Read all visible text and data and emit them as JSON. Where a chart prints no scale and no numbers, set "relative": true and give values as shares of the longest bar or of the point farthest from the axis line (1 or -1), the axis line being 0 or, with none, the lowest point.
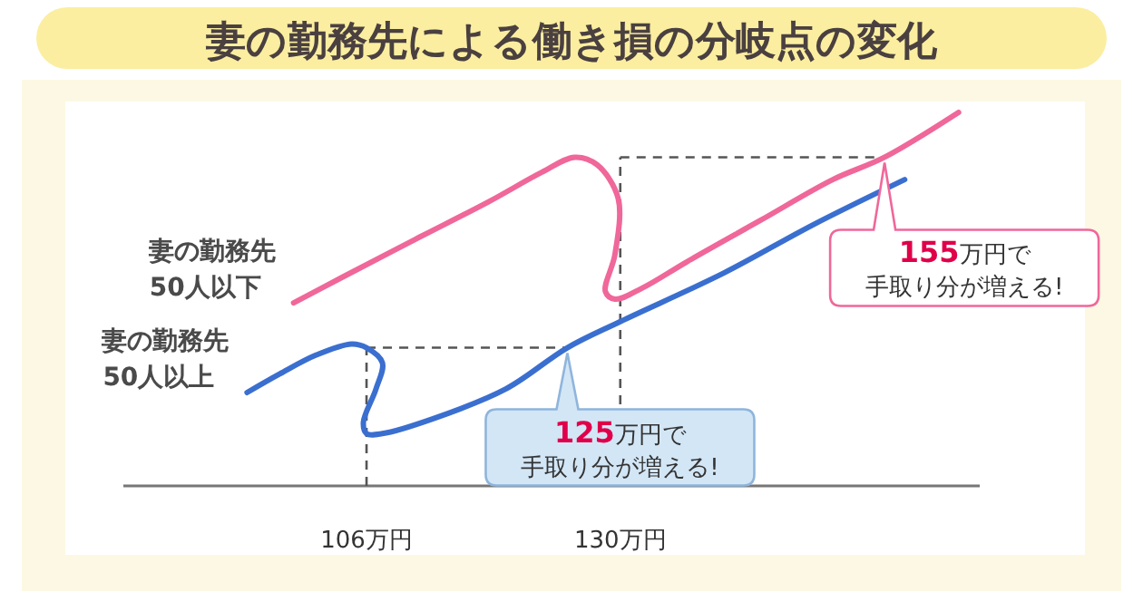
{
  "chart_data": {
    "type": "line",
    "title": "妻の勤務先による働き損の分岐点の変化",
    "relative": true,
    "xlim": [
      83,
      164
    ],
    "xticks": [
      {
        "value": 106,
        "label": "106万円"
      },
      {
        "value": 130,
        "label": "130万円"
      }
    ],
    "tick_labels": "x",
    "grid": false,
    "legend": false,
    "marker": "none",
    "line_style": "solid",
    "series": [
      {
        "name": "妻の勤務先\n50人以下",
        "color": "#f0679a",
        "x": [
          99.1,
          103.8,
          110.6,
          117.5,
          122.6,
          125.7,
          127.8,
          129.8,
          129.5,
          128.6,
          129.5,
          132.1,
          136.3,
          143.2,
          150.1,
          155,
          162
        ],
        "values": [
          0.49,
          0.56,
          0.66,
          0.76,
          0.84,
          0.88,
          0.86,
          0.77,
          0.62,
          0.52,
          0.5,
          0.53,
          0.6,
          0.71,
          0.82,
          0.88,
          1.0
        ]
      },
      {
        "name": "妻の勤務先\n50人以上",
        "color": "#3a6fd0",
        "x": [
          94.7,
          97.8,
          101.2,
          104.6,
          106,
          107.5,
          106.9,
          105.7,
          106,
          107.5,
          112.3,
          119.2,
          125,
          130,
          139.8,
          148.3,
          156.9
        ],
        "values": [
          0.25,
          0.3,
          0.35,
          0.38,
          0.37,
          0.33,
          0.26,
          0.17,
          0.14,
          0.14,
          0.18,
          0.26,
          0.37,
          0.44,
          0.57,
          0.7,
          0.82
        ]
      }
    ],
    "ref_lines": [
      {
        "axis": "x",
        "value": 106,
        "line_style": "dashed",
        "color": "#555555"
      },
      {
        "axis": "x",
        "value": 130,
        "line_style": "dashed",
        "color": "#555555"
      },
      {
        "axis": "y",
        "value": 0.88,
        "line_style": "dashed",
        "color": "#555555"
      },
      {
        "axis": "y",
        "value": 0.37,
        "line_style": "dashed",
        "color": "#555555"
      }
    ],
    "annotations": [
      {
        "text": "155万円で手取り分が増える!",
        "x": 155,
        "y": 0.88
      },
      {
        "text": "125万円で手取り分が増える!",
        "x": 125,
        "y": 0.37
      }
    ]
  }
}
